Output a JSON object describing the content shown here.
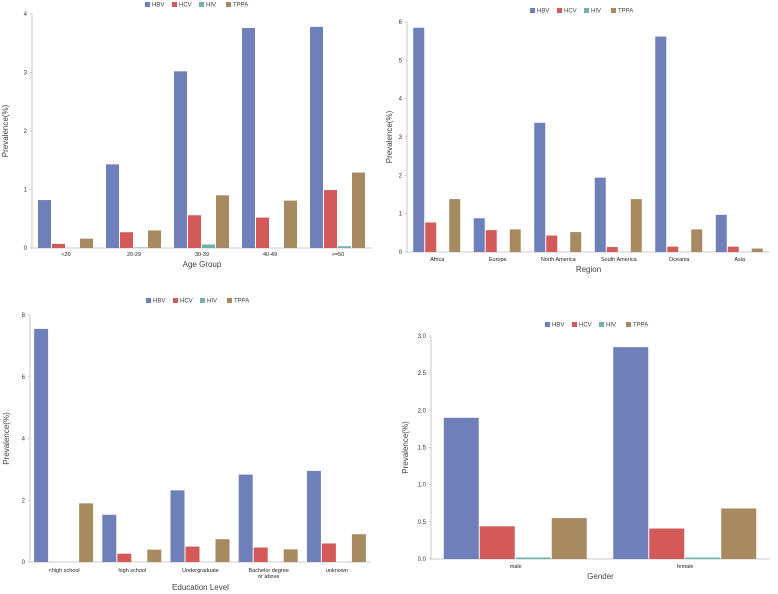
{
  "colors": {
    "HBV": "#6f7fb9",
    "HCV": "#d45a5a",
    "HIV": "#6fb3a8",
    "TPPA": "#a88a60"
  },
  "chart_data": [
    {
      "type": "bar",
      "xlabel": "Age Group",
      "ylabel": "Prevalence(%)",
      "categories": [
        "<20",
        "20-29",
        "30-39",
        "40-49",
        ">=50"
      ],
      "ylim": [
        0,
        4
      ],
      "yticks": [
        "0",
        "1",
        "2",
        "3",
        "4"
      ],
      "series": [
        {
          "name": "HBV",
          "values": [
            0.82,
            1.43,
            3.02,
            3.76,
            3.78
          ]
        },
        {
          "name": "HCV",
          "values": [
            0.07,
            0.27,
            0.56,
            0.52,
            0.99
          ]
        },
        {
          "name": "HIV",
          "values": [
            0.0,
            0.01,
            0.06,
            0.0,
            0.03
          ]
        },
        {
          "name": "TPPA",
          "values": [
            0.16,
            0.3,
            0.9,
            0.81,
            1.29
          ]
        }
      ],
      "legend": "top-center"
    },
    {
      "type": "bar",
      "xlabel": "Region",
      "ylabel": "Prevalence(%)",
      "categories": [
        "Africa",
        "Europe",
        "North America",
        "South America",
        "Oceania",
        "Asia"
      ],
      "ylim": [
        0,
        6
      ],
      "yticks": [
        "0",
        "1",
        "2",
        "3",
        "4",
        "5",
        "6"
      ],
      "series": [
        {
          "name": "HBV",
          "values": [
            5.85,
            0.88,
            3.37,
            1.94,
            5.62,
            0.97
          ]
        },
        {
          "name": "HCV",
          "values": [
            0.77,
            0.57,
            0.43,
            0.13,
            0.14,
            0.14
          ]
        },
        {
          "name": "HIV",
          "values": [
            0.0,
            0.0,
            0.0,
            0.0,
            0.0,
            0.0
          ]
        },
        {
          "name": "TPPA",
          "values": [
            1.38,
            0.59,
            0.52,
            1.38,
            0.59,
            0.09
          ]
        }
      ],
      "legend": "top-center"
    },
    {
      "type": "bar",
      "xlabel": "Education Level",
      "ylabel": "Prevalence(%)",
      "categories": [
        "<high school",
        "high school",
        "Undergraduate",
        "Bachelor degree or above",
        "unknown"
      ],
      "ylim": [
        0,
        8
      ],
      "yticks": [
        "0",
        "2",
        "4",
        "6",
        "8"
      ],
      "series": [
        {
          "name": "HBV",
          "values": [
            7.55,
            1.53,
            2.32,
            2.83,
            2.95
          ]
        },
        {
          "name": "HCV",
          "values": [
            0.0,
            0.27,
            0.5,
            0.47,
            0.6
          ]
        },
        {
          "name": "HIV",
          "values": [
            0.0,
            0.0,
            0.0,
            0.0,
            0.0
          ]
        },
        {
          "name": "TPPA",
          "values": [
            1.9,
            0.4,
            0.74,
            0.41,
            0.9
          ]
        }
      ],
      "legend": "top-center"
    },
    {
      "type": "bar",
      "xlabel": "Gender",
      "ylabel": "Prevalence(%)",
      "categories": [
        "male",
        "female"
      ],
      "ylim": [
        0,
        3.0
      ],
      "yticks": [
        "0.0",
        "0.5",
        "1.0",
        "1.5",
        "2.0",
        "2.5",
        "3.0"
      ],
      "series": [
        {
          "name": "HBV",
          "values": [
            1.9,
            2.85
          ]
        },
        {
          "name": "HCV",
          "values": [
            0.44,
            0.41
          ]
        },
        {
          "name": "HIV",
          "values": [
            0.02,
            0.02
          ]
        },
        {
          "name": "TPPA",
          "values": [
            0.55,
            0.68
          ]
        }
      ],
      "legend": "top-center"
    }
  ]
}
